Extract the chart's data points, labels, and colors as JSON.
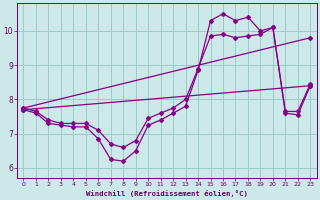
{
  "xlabel": "Windchill (Refroidissement éolien,°C)",
  "background_color": "#cce8e8",
  "grid_color": "#99cccc",
  "line_color": "#880088",
  "xlim": [
    -0.5,
    23.5
  ],
  "ylim": [
    5.7,
    10.8
  ],
  "xticks": [
    0,
    1,
    2,
    3,
    4,
    5,
    6,
    7,
    8,
    9,
    10,
    11,
    12,
    13,
    14,
    15,
    16,
    17,
    18,
    19,
    20,
    21,
    22,
    23
  ],
  "yticks": [
    6,
    7,
    8,
    9,
    10
  ],
  "curve1_x": [
    0,
    1,
    2,
    3,
    4,
    5,
    6,
    7,
    8,
    9,
    10,
    11,
    12,
    13,
    14,
    15,
    16,
    17,
    18,
    19,
    20,
    21,
    22,
    23
  ],
  "curve1_y": [
    7.7,
    7.6,
    7.3,
    7.25,
    7.2,
    7.2,
    6.85,
    6.25,
    6.2,
    6.5,
    7.25,
    7.4,
    7.6,
    7.8,
    8.85,
    10.3,
    10.5,
    10.3,
    10.4,
    10.0,
    10.1,
    7.6,
    7.55,
    8.4
  ],
  "curve2_x": [
    0,
    1,
    2,
    3,
    4,
    5,
    6,
    7,
    8,
    9,
    10,
    11,
    12,
    13,
    14,
    15,
    16,
    17,
    18,
    19,
    20,
    21,
    22,
    23
  ],
  "curve2_y": [
    7.75,
    7.65,
    7.4,
    7.3,
    7.3,
    7.3,
    7.1,
    6.7,
    6.6,
    6.8,
    7.45,
    7.6,
    7.75,
    8.0,
    8.9,
    9.85,
    9.9,
    9.8,
    9.85,
    9.9,
    10.1,
    7.65,
    7.65,
    8.45
  ],
  "line3_x": [
    0,
    23
  ],
  "line3_y": [
    7.7,
    8.4
  ],
  "line4_x": [
    0,
    23
  ],
  "line4_y": [
    7.75,
    9.8
  ]
}
